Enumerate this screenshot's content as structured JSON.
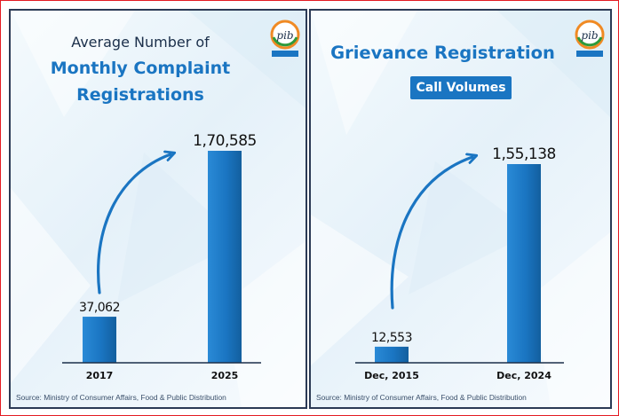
{
  "colors": {
    "accent": "#1a75c2",
    "border": "#e31b23",
    "panel_border": "#2b3a55",
    "text_dark": "#111111"
  },
  "panels": [
    {
      "logo_icon": "pib-logo-icon",
      "title_line1": "Average Number of",
      "title_line2": "Monthly Complaint",
      "title_line3": "Registrations",
      "source": "Source: Ministry of Consumer Affairs, Food & Public Distribution"
    },
    {
      "logo_icon": "pib-logo-icon",
      "title_line1": "Grievance Registration",
      "badge": "Call Volumes",
      "source": "Source: Ministry of Consumer Affairs, Food & Public Distribution"
    }
  ],
  "chart_data": [
    {
      "type": "bar",
      "title": "Average Number of Monthly Complaint Registrations",
      "categories": [
        "2017",
        "2025"
      ],
      "values": [
        37062,
        170585
      ],
      "value_labels": [
        "37,062",
        "1,70,585"
      ],
      "trend_arrow": "upward"
    },
    {
      "type": "bar",
      "title": "Grievance Registration Call Volumes",
      "categories": [
        "Dec, 2015",
        "Dec, 2024"
      ],
      "values": [
        12553,
        155138
      ],
      "value_labels": [
        "12,553",
        "1,55,138"
      ],
      "trend_arrow": "upward"
    }
  ]
}
